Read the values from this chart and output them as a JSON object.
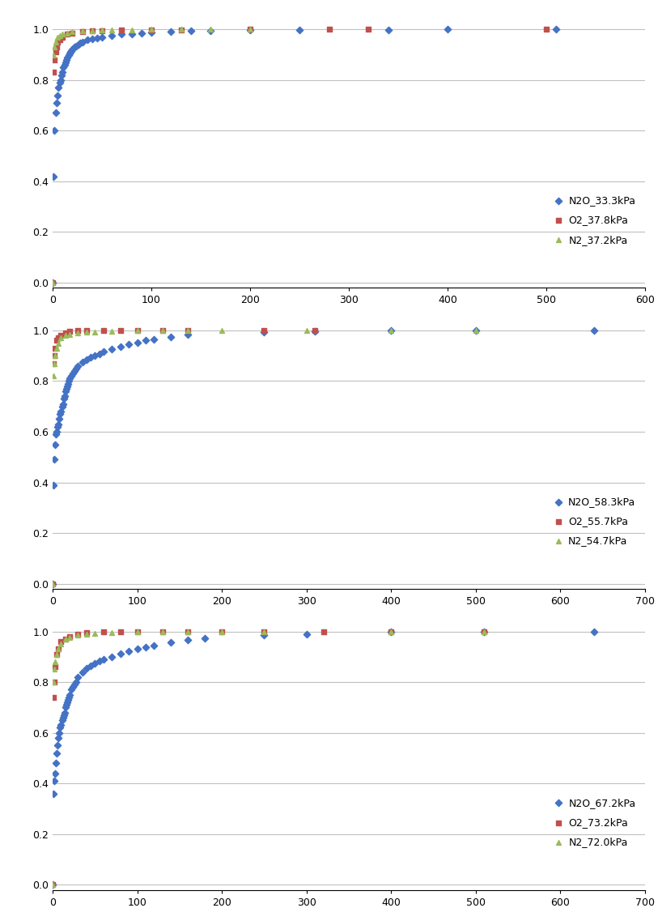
{
  "panels": [
    {
      "legend_labels": [
        "N2O_33.3kPa",
        "O2_37.8kPa",
        "N2_37.2kPa"
      ],
      "xlim": [
        0,
        600
      ],
      "xticks": [
        0,
        100,
        200,
        300,
        400,
        500,
        600
      ],
      "n2o": {
        "x": [
          0,
          1,
          2,
          3,
          4,
          5,
          6,
          7,
          8,
          9,
          10,
          11,
          12,
          13,
          14,
          15,
          16,
          17,
          18,
          19,
          20,
          22,
          24,
          26,
          28,
          30,
          35,
          40,
          45,
          50,
          60,
          70,
          80,
          90,
          100,
          120,
          140,
          160,
          200,
          250,
          340,
          400,
          510
        ],
        "y": [
          0.0,
          0.42,
          0.6,
          0.67,
          0.71,
          0.74,
          0.77,
          0.79,
          0.8,
          0.82,
          0.83,
          0.85,
          0.86,
          0.87,
          0.88,
          0.89,
          0.9,
          0.905,
          0.91,
          0.915,
          0.92,
          0.93,
          0.935,
          0.94,
          0.945,
          0.95,
          0.958,
          0.963,
          0.967,
          0.97,
          0.975,
          0.98,
          0.983,
          0.986,
          0.989,
          0.992,
          0.994,
          0.995,
          0.997,
          0.998,
          0.999,
          1.0,
          1.0
        ]
      },
      "o2": {
        "x": [
          0,
          1,
          2,
          3,
          4,
          5,
          7,
          10,
          15,
          20,
          30,
          40,
          50,
          70,
          100,
          130,
          200,
          280,
          320,
          500
        ],
        "y": [
          0.0,
          0.83,
          0.88,
          0.91,
          0.93,
          0.95,
          0.96,
          0.97,
          0.98,
          0.985,
          0.99,
          0.993,
          0.995,
          0.997,
          0.998,
          0.999,
          1.0,
          1.0,
          1.0,
          1.0
        ]
      },
      "n2": {
        "x": [
          0,
          1,
          2,
          3,
          5,
          7,
          10,
          15,
          20,
          30,
          40,
          50,
          60,
          80,
          100,
          130,
          160,
          200
        ],
        "y": [
          0.0,
          0.9,
          0.93,
          0.95,
          0.97,
          0.975,
          0.98,
          0.985,
          0.99,
          0.993,
          0.995,
          0.997,
          0.998,
          0.999,
          1.0,
          1.0,
          1.0,
          1.0
        ]
      }
    },
    {
      "legend_labels": [
        "N2O_58.3kPa",
        "O2_55.7kPa",
        "N2_54.7kPa"
      ],
      "xlim": [
        0,
        700
      ],
      "xticks": [
        0,
        100,
        200,
        300,
        400,
        500,
        600,
        700
      ],
      "n2o": {
        "x": [
          0,
          1,
          2,
          3,
          4,
          5,
          6,
          7,
          8,
          9,
          10,
          11,
          12,
          13,
          14,
          15,
          16,
          17,
          18,
          19,
          20,
          22,
          24,
          26,
          28,
          30,
          35,
          40,
          45,
          50,
          55,
          60,
          70,
          80,
          90,
          100,
          110,
          120,
          140,
          160,
          250,
          310,
          400,
          500,
          640
        ],
        "y": [
          0.0,
          0.39,
          0.49,
          0.55,
          0.59,
          0.6,
          0.62,
          0.63,
          0.65,
          0.67,
          0.68,
          0.7,
          0.71,
          0.73,
          0.74,
          0.76,
          0.77,
          0.78,
          0.79,
          0.8,
          0.81,
          0.82,
          0.83,
          0.84,
          0.85,
          0.86,
          0.875,
          0.885,
          0.893,
          0.9,
          0.908,
          0.915,
          0.927,
          0.937,
          0.945,
          0.953,
          0.96,
          0.966,
          0.975,
          0.982,
          0.992,
          0.996,
          1.0,
          1.0,
          1.0
        ]
      },
      "o2": {
        "x": [
          0,
          1,
          2,
          3,
          5,
          7,
          10,
          15,
          20,
          30,
          40,
          60,
          80,
          100,
          130,
          160,
          250,
          310
        ],
        "y": [
          0.0,
          0.87,
          0.9,
          0.93,
          0.96,
          0.97,
          0.98,
          0.99,
          0.995,
          0.998,
          1.0,
          1.0,
          1.0,
          1.0,
          1.0,
          1.0,
          1.0,
          1.0
        ]
      },
      "n2": {
        "x": [
          0,
          1,
          2,
          3,
          5,
          7,
          10,
          15,
          20,
          30,
          40,
          50,
          70,
          100,
          130,
          160,
          200,
          300,
          400,
          500
        ],
        "y": [
          0.0,
          0.82,
          0.87,
          0.9,
          0.93,
          0.95,
          0.97,
          0.98,
          0.985,
          0.99,
          0.992,
          0.994,
          0.996,
          0.998,
          0.999,
          1.0,
          1.0,
          1.0,
          1.0,
          1.0
        ]
      }
    },
    {
      "legend_labels": [
        "N2O_67.2kPa",
        "O2_73.2kPa",
        "N2_72.0kPa"
      ],
      "xlim": [
        0,
        700
      ],
      "xticks": [
        0,
        100,
        200,
        300,
        400,
        500,
        600,
        700
      ],
      "n2o": {
        "x": [
          0,
          1,
          2,
          3,
          4,
          5,
          6,
          7,
          8,
          9,
          10,
          11,
          12,
          13,
          14,
          15,
          16,
          17,
          18,
          19,
          20,
          22,
          24,
          26,
          28,
          30,
          35,
          40,
          45,
          50,
          55,
          60,
          70,
          80,
          90,
          100,
          110,
          120,
          140,
          160,
          180,
          250,
          300,
          400,
          510,
          640
        ],
        "y": [
          0.0,
          0.36,
          0.41,
          0.44,
          0.48,
          0.52,
          0.55,
          0.58,
          0.6,
          0.62,
          0.63,
          0.65,
          0.66,
          0.67,
          0.68,
          0.7,
          0.71,
          0.72,
          0.73,
          0.74,
          0.75,
          0.77,
          0.78,
          0.79,
          0.8,
          0.82,
          0.84,
          0.855,
          0.865,
          0.875,
          0.882,
          0.889,
          0.9,
          0.912,
          0.922,
          0.93,
          0.938,
          0.945,
          0.957,
          0.966,
          0.973,
          0.985,
          0.99,
          0.997,
          1.0,
          1.0
        ]
      },
      "o2": {
        "x": [
          0,
          1,
          2,
          3,
          5,
          7,
          10,
          15,
          20,
          30,
          40,
          60,
          80,
          100,
          130,
          160,
          200,
          250,
          320,
          400,
          510
        ],
        "y": [
          0.0,
          0.74,
          0.8,
          0.86,
          0.91,
          0.93,
          0.96,
          0.97,
          0.98,
          0.99,
          0.995,
          0.997,
          0.998,
          0.999,
          1.0,
          1.0,
          1.0,
          1.0,
          1.0,
          1.0,
          1.0
        ]
      },
      "n2": {
        "x": [
          0,
          1,
          2,
          3,
          5,
          7,
          10,
          15,
          20,
          30,
          40,
          50,
          70,
          100,
          130,
          160,
          200,
          250,
          400,
          510
        ],
        "y": [
          0.0,
          0.8,
          0.85,
          0.88,
          0.91,
          0.93,
          0.95,
          0.97,
          0.975,
          0.985,
          0.99,
          0.992,
          0.995,
          0.997,
          0.999,
          1.0,
          1.0,
          1.0,
          1.0,
          1.0
        ]
      }
    }
  ],
  "n2o_color": "#4472C4",
  "o2_color": "#C0504D",
  "n2_color": "#9BBB59",
  "background_color": "#FFFFFF",
  "grid_color": "#C0C0C0",
  "yticks": [
    0,
    0.2,
    0.4,
    0.6,
    0.8,
    1.0
  ],
  "ylim": [
    -0.02,
    1.08
  ]
}
